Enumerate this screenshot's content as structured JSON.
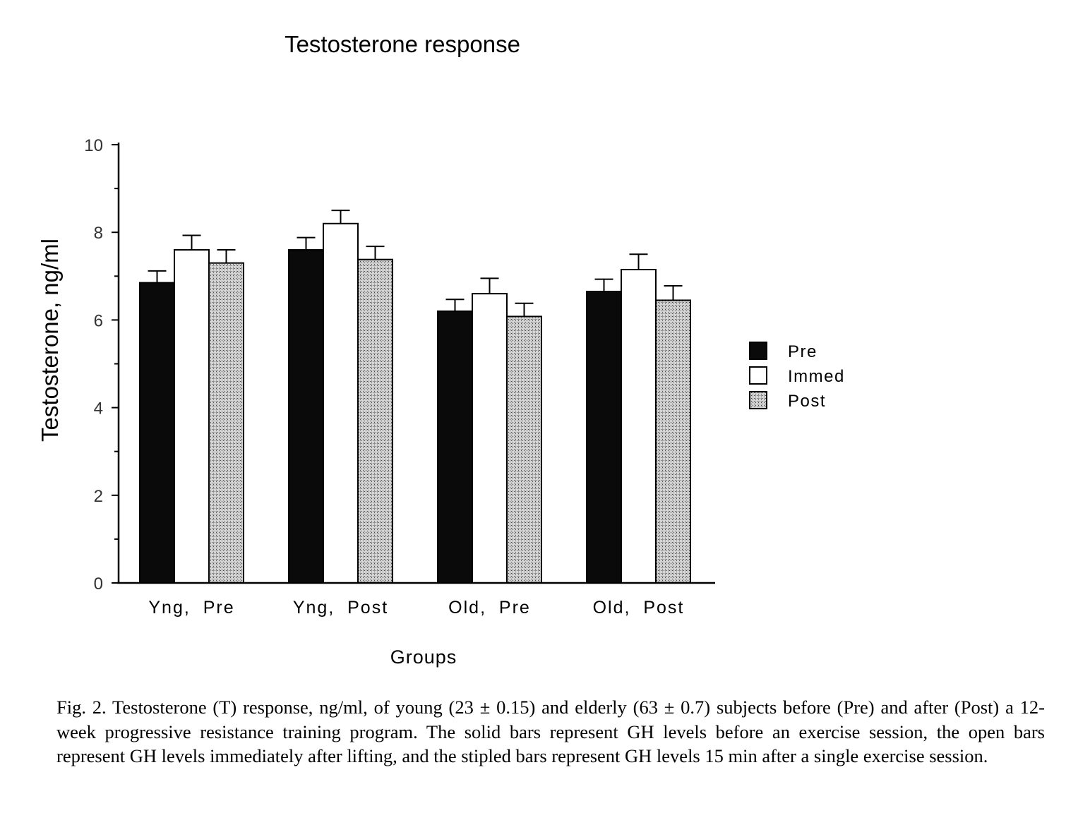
{
  "chart_data": {
    "type": "bar",
    "title": "Testosterone response",
    "xlabel": "Groups",
    "ylabel": "Testosterone, ng/ml",
    "ylim": [
      0,
      10
    ],
    "yticks": [
      "0",
      "2",
      "4",
      "6",
      "8",
      "10"
    ],
    "grid": false,
    "legend_position": "right",
    "categories": [
      "Yng,  Pre",
      "Yng,  Post",
      "Old,  Pre",
      "Old,  Post"
    ],
    "series": [
      {
        "name": "Pre",
        "values": [
          6.85,
          7.6,
          6.2,
          6.65
        ],
        "errors": [
          0.27,
          0.28,
          0.27,
          0.28
        ],
        "fill": "solid"
      },
      {
        "name": "Immed",
        "values": [
          7.6,
          8.2,
          6.6,
          7.15
        ],
        "errors": [
          0.33,
          0.3,
          0.35,
          0.35
        ],
        "fill": "open"
      },
      {
        "name": "Post",
        "values": [
          7.3,
          7.38,
          6.08,
          6.45
        ],
        "errors": [
          0.3,
          0.3,
          0.3,
          0.33
        ],
        "fill": "stippled"
      }
    ]
  },
  "caption": "Fig. 2. Testosterone (T) response, ng/ml, of young (23 ± 0.15) and elderly (63 ± 0.7) subjects before (Pre) and after (Post) a 12-week progressive resistance training program. The solid bars represent GH levels before an exercise session, the open bars represent GH levels immediately after lifting, and the stipled bars represent GH levels 15 min after a single exercise session."
}
